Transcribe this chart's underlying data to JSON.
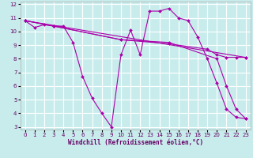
{
  "xlabel": "Windchill (Refroidissement éolien,°C)",
  "background_color": "#c8ecec",
  "grid_color": "#ffffff",
  "line_color": "#aa00aa",
  "xlim": [
    -0.5,
    23.5
  ],
  "ylim": [
    2.8,
    12.2
  ],
  "yticks": [
    3,
    4,
    5,
    6,
    7,
    8,
    9,
    10,
    11,
    12
  ],
  "xticks": [
    0,
    1,
    2,
    3,
    4,
    5,
    6,
    7,
    8,
    9,
    10,
    11,
    12,
    13,
    14,
    15,
    16,
    17,
    18,
    19,
    20,
    21,
    22,
    23
  ],
  "series": [
    {
      "x": [
        0,
        1,
        2,
        3,
        4,
        5,
        6,
        7,
        8,
        9,
        10,
        11,
        12,
        13,
        14,
        15,
        16,
        17,
        18,
        19,
        20,
        21,
        22,
        23
      ],
      "y": [
        10.8,
        10.3,
        10.5,
        10.4,
        10.4,
        9.2,
        6.7,
        5.1,
        4.0,
        3.0,
        8.3,
        10.1,
        8.3,
        11.5,
        11.5,
        11.7,
        11.0,
        10.8,
        9.6,
        8.0,
        6.2,
        4.3,
        3.7,
        3.6
      ]
    },
    {
      "x": [
        0,
        3,
        10,
        15,
        19,
        20,
        21,
        22,
        23
      ],
      "y": [
        10.8,
        10.4,
        9.4,
        9.1,
        8.7,
        8.3,
        8.1,
        8.1,
        8.1
      ]
    },
    {
      "x": [
        0,
        3,
        10,
        15,
        20,
        21,
        22,
        23
      ],
      "y": [
        10.8,
        10.4,
        9.4,
        9.2,
        8.0,
        6.0,
        4.3,
        3.6
      ]
    },
    {
      "x": [
        0,
        23
      ],
      "y": [
        10.8,
        8.1
      ]
    }
  ]
}
